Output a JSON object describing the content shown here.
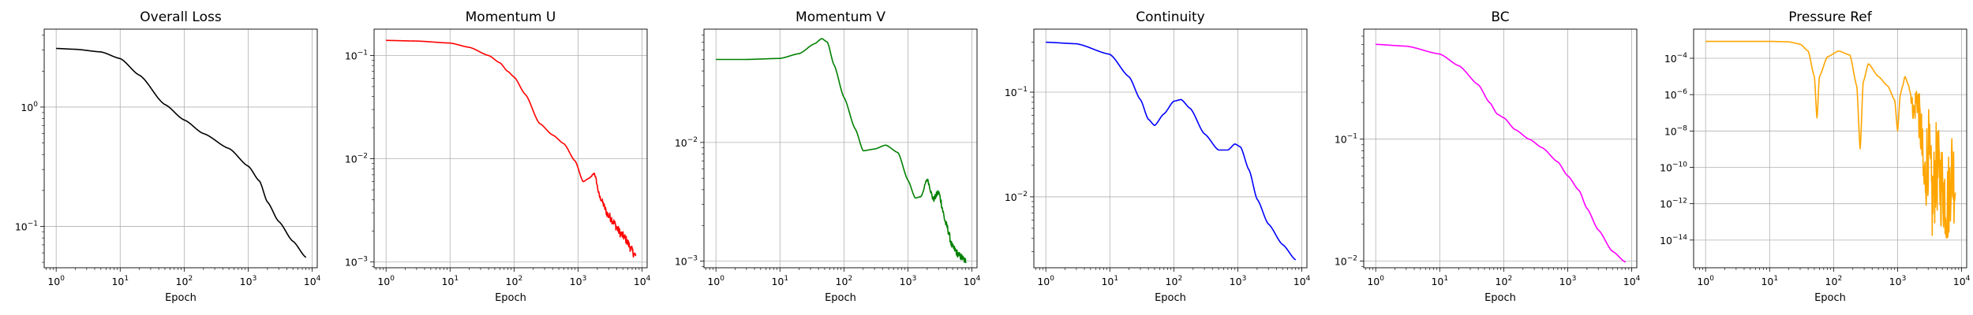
{
  "chart_data": [
    {
      "type": "line",
      "title": "Overall Loss",
      "xlabel": "Epoch",
      "ylabel": "",
      "xscale": "log",
      "yscale": "log",
      "xlim": [
        0.65,
        12000
      ],
      "ylim": [
        0.045,
        4.5
      ],
      "grid": true,
      "xticks": [
        {
          "base": "10",
          "exp": "0"
        },
        {
          "base": "10",
          "exp": "1"
        },
        {
          "base": "10",
          "exp": "2"
        },
        {
          "base": "10",
          "exp": "3"
        },
        {
          "base": "10",
          "exp": "4"
        }
      ],
      "yticks": [
        {
          "base": "10",
          "exp": "0"
        },
        {
          "base": "10",
          "exp": "−1"
        }
      ],
      "series": [
        {
          "color": "#000000",
          "x": [
            1,
            2,
            5,
            10,
            20,
            50,
            100,
            200,
            500,
            1000,
            1500,
            2000,
            3000,
            5000,
            8000
          ],
          "y": [
            3.1,
            3.05,
            2.9,
            2.55,
            1.85,
            1.05,
            0.78,
            0.6,
            0.45,
            0.32,
            0.24,
            0.16,
            0.11,
            0.075,
            0.055
          ],
          "noise": 0
        }
      ]
    },
    {
      "type": "line",
      "title": "Momentum U",
      "xlabel": "Epoch",
      "ylabel": "",
      "xscale": "log",
      "yscale": "log",
      "xlim": [
        0.65,
        12000
      ],
      "ylim": [
        0.00088,
        0.18
      ],
      "grid": true,
      "xticks": [
        {
          "base": "10",
          "exp": "0"
        },
        {
          "base": "10",
          "exp": "1"
        },
        {
          "base": "10",
          "exp": "2"
        },
        {
          "base": "10",
          "exp": "3"
        },
        {
          "base": "10",
          "exp": "4"
        }
      ],
      "yticks": [
        {
          "base": "10",
          "exp": "−1"
        },
        {
          "base": "10",
          "exp": "−2"
        },
        {
          "base": "10",
          "exp": "−3"
        }
      ],
      "series": [
        {
          "color": "#ff0000",
          "x": [
            1,
            3,
            10,
            20,
            40,
            60,
            80,
            100,
            150,
            250,
            400,
            600,
            900,
            1200,
            1500,
            1800,
            2200,
            3000,
            5000,
            8000
          ],
          "y": [
            0.14,
            0.138,
            0.132,
            0.12,
            0.1,
            0.085,
            0.07,
            0.062,
            0.042,
            0.022,
            0.017,
            0.014,
            0.0095,
            0.006,
            0.0065,
            0.0072,
            0.0042,
            0.0028,
            0.0018,
            0.00115
          ],
          "noise": 0.04
        }
      ]
    },
    {
      "type": "line",
      "title": "Momentum V",
      "xlabel": "Epoch",
      "ylabel": "",
      "xscale": "log",
      "yscale": "log",
      "xlim": [
        0.65,
        12000
      ],
      "ylim": [
        0.00088,
        0.09
      ],
      "grid": true,
      "xticks": [
        {
          "base": "10",
          "exp": "0"
        },
        {
          "base": "10",
          "exp": "1"
        },
        {
          "base": "10",
          "exp": "2"
        },
        {
          "base": "10",
          "exp": "3"
        },
        {
          "base": "10",
          "exp": "4"
        }
      ],
      "yticks": [
        {
          "base": "10",
          "exp": "−2"
        },
        {
          "base": "10",
          "exp": "−3"
        }
      ],
      "series": [
        {
          "color": "#008000",
          "x": [
            1,
            3,
            10,
            20,
            35,
            45,
            55,
            70,
            100,
            150,
            200,
            300,
            450,
            700,
            1000,
            1300,
            1600,
            2000,
            2500,
            3000,
            4000,
            5000,
            6500,
            8000
          ],
          "y": [
            0.05,
            0.05,
            0.051,
            0.056,
            0.068,
            0.075,
            0.07,
            0.045,
            0.024,
            0.013,
            0.0085,
            0.0088,
            0.0095,
            0.0082,
            0.0048,
            0.0034,
            0.0035,
            0.0049,
            0.0033,
            0.0038,
            0.002,
            0.0013,
            0.0011,
            0.001
          ],
          "noise": 0.03
        }
      ]
    },
    {
      "type": "line",
      "title": "Continuity",
      "xlabel": "Epoch",
      "ylabel": "",
      "xscale": "log",
      "yscale": "log",
      "xlim": [
        0.65,
        12000
      ],
      "ylim": [
        0.0021,
        0.4
      ],
      "grid": true,
      "xticks": [
        {
          "base": "10",
          "exp": "0"
        },
        {
          "base": "10",
          "exp": "1"
        },
        {
          "base": "10",
          "exp": "2"
        },
        {
          "base": "10",
          "exp": "3"
        },
        {
          "base": "10",
          "exp": "4"
        }
      ],
      "yticks": [
        {
          "base": "10",
          "exp": "−1"
        },
        {
          "base": "10",
          "exp": "−2"
        }
      ],
      "series": [
        {
          "color": "#0000ff",
          "x": [
            1,
            3,
            10,
            20,
            30,
            40,
            50,
            70,
            100,
            130,
            180,
            300,
            500,
            700,
            900,
            1100,
            1500,
            2000,
            3000,
            5000,
            8000
          ],
          "y": [
            0.3,
            0.29,
            0.23,
            0.14,
            0.085,
            0.055,
            0.048,
            0.062,
            0.082,
            0.085,
            0.07,
            0.04,
            0.028,
            0.028,
            0.032,
            0.03,
            0.018,
            0.0095,
            0.0055,
            0.0035,
            0.0025
          ],
          "noise": 0
        }
      ]
    },
    {
      "type": "line",
      "title": "BC",
      "xlabel": "Epoch",
      "ylabel": "",
      "xscale": "log",
      "yscale": "log",
      "xlim": [
        0.65,
        12000
      ],
      "ylim": [
        0.0088,
        0.8
      ],
      "grid": true,
      "xticks": [
        {
          "base": "10",
          "exp": "0"
        },
        {
          "base": "10",
          "exp": "1"
        },
        {
          "base": "10",
          "exp": "2"
        },
        {
          "base": "10",
          "exp": "3"
        },
        {
          "base": "10",
          "exp": "4"
        }
      ],
      "yticks": [
        {
          "base": "10",
          "exp": "−1"
        },
        {
          "base": "10",
          "exp": "−2"
        }
      ],
      "series": [
        {
          "color": "#ff00ff",
          "x": [
            1,
            3,
            10,
            20,
            40,
            60,
            80,
            100,
            150,
            250,
            400,
            700,
            1000,
            1500,
            2000,
            3000,
            5000,
            8000
          ],
          "y": [
            0.6,
            0.58,
            0.5,
            0.4,
            0.28,
            0.2,
            0.16,
            0.15,
            0.12,
            0.1,
            0.085,
            0.065,
            0.05,
            0.038,
            0.027,
            0.018,
            0.012,
            0.0098
          ],
          "noise": 0
        }
      ]
    },
    {
      "type": "line",
      "title": "Pressure Ref",
      "xlabel": "Epoch",
      "ylabel": "",
      "xscale": "log",
      "yscale": "log",
      "xlim": [
        0.65,
        12000
      ],
      "ylim": [
        3e-16,
        0.004
      ],
      "grid": true,
      "xticks": [
        {
          "base": "10",
          "exp": "0"
        },
        {
          "base": "10",
          "exp": "1"
        },
        {
          "base": "10",
          "exp": "2"
        },
        {
          "base": "10",
          "exp": "3"
        },
        {
          "base": "10",
          "exp": "4"
        }
      ],
      "yticks": [
        {
          "base": "10",
          "exp": "−4"
        },
        {
          "base": "10",
          "exp": "−6"
        },
        {
          "base": "10",
          "exp": "−8"
        },
        {
          "base": "10",
          "exp": "−10"
        },
        {
          "base": "10",
          "exp": "−12"
        },
        {
          "base": "10",
          "exp": "−14"
        }
      ],
      "series": [
        {
          "color": "#ffa500",
          "x": [
            1,
            3,
            10,
            20,
            30,
            40,
            50,
            55,
            60,
            80,
            120,
            180,
            230,
            260,
            290,
            350,
            500,
            700,
            900,
            1000,
            1100,
            1200,
            1300,
            1500,
            1800,
            2000,
            2300,
            2600,
            3000,
            3500,
            4000,
            5000,
            6000,
            7000,
            8000
          ],
          "y": [
            0.00085,
            0.00085,
            0.00085,
            0.0008,
            0.0006,
            0.00025,
            1e-05,
            5e-08,
            1e-05,
            0.00012,
            0.00025,
            0.00015,
            3e-06,
            1e-09,
            5e-06,
            5e-05,
            1e-05,
            3e-06,
            5e-07,
            1e-08,
            1e-06,
            3e-06,
            1e-05,
            3e-06,
            1e-07,
            1e-06,
            1e-08,
            1e-11,
            1e-09,
            1e-12,
            1e-10,
            1e-11,
            1e-12,
            1e-10,
            1e-11
          ],
          "noise": 2.5
        }
      ]
    }
  ]
}
